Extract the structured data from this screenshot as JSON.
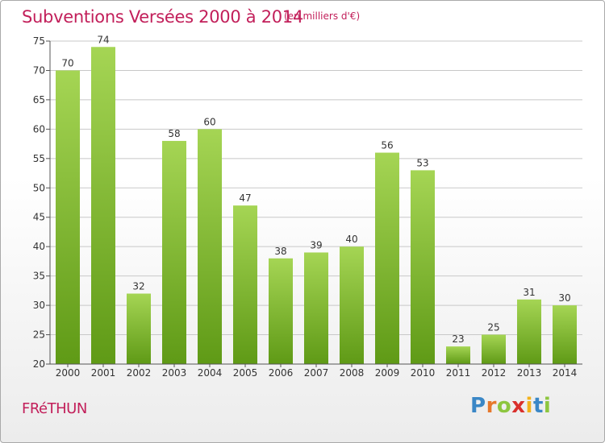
{
  "header": {
    "title": "Subventions Versées 2000 à 2014",
    "subtitle": "(en milliers d'€)"
  },
  "footer": {
    "commune": "FRéTHUN",
    "brand": [
      {
        "ch": "P",
        "color": "#3a87c6"
      },
      {
        "ch": "r",
        "color": "#e6782c"
      },
      {
        "ch": "o",
        "color": "#8dc63f"
      },
      {
        "ch": "x",
        "color": "#d9302c"
      },
      {
        "ch": "i",
        "color": "#f3b21c"
      },
      {
        "ch": "t",
        "color": "#3a87c6"
      },
      {
        "ch": "i",
        "color": "#8dc63f"
      }
    ]
  },
  "colors": {
    "bar_top": "#a5d554",
    "bar_bottom": "#5f9a16",
    "grid": "#c8c8c8",
    "axis": "#555555",
    "title": "#c21f5a"
  },
  "chart_data": {
    "type": "bar",
    "categories": [
      "2000",
      "2001",
      "2002",
      "2003",
      "2004",
      "2005",
      "2006",
      "2007",
      "2008",
      "2009",
      "2010",
      "2011",
      "2012",
      "2013",
      "2014"
    ],
    "values": [
      70,
      74,
      32,
      58,
      60,
      47,
      38,
      39,
      40,
      56,
      53,
      23,
      25,
      31,
      30
    ],
    "ylim": [
      20,
      75
    ],
    "yticks": [
      20,
      25,
      30,
      35,
      40,
      45,
      50,
      55,
      60,
      65,
      70,
      75
    ],
    "grid": true
  }
}
